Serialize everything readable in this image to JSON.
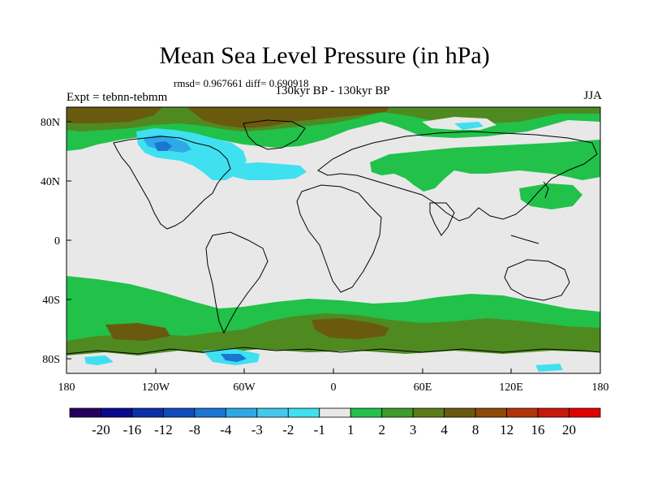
{
  "title": "Mean Sea Level Pressure (in hPa)",
  "stats": "rmsd= 0.967661 diff= 0.690918",
  "period": "130kyr BP - 130kyr BP",
  "experiment": "Expt = tebnn-tebmm",
  "season": "JJA",
  "lat_labels": [
    "80N",
    "40N",
    "0",
    "40S",
    "80S"
  ],
  "lon_labels": [
    "180",
    "120W",
    "60W",
    "0",
    "60E",
    "120E",
    "180"
  ],
  "colorbar": {
    "colors": [
      "#24005e",
      "#0a0a8c",
      "#0c2ea8",
      "#0e4cbe",
      "#1b76d2",
      "#2ea9e6",
      "#44c8ee",
      "#3fe0f0",
      "#e8e8e8",
      "#21c14a",
      "#3f9b2a",
      "#5c7c1a",
      "#6a5a10",
      "#8e4a08",
      "#b3330a",
      "#c8180a",
      "#e00000"
    ],
    "labels": [
      "-20",
      "-16",
      "-12",
      "-8",
      "-4",
      "-3",
      "-2",
      "-1",
      "1",
      "2",
      "3",
      "4",
      "8",
      "12",
      "16",
      "20"
    ]
  },
  "colors": {
    "background_field": "#e8e8e8",
    "pos_light": "#21c14a",
    "pos_mid": "#4f8a21",
    "pos_dark": "#6a5a10",
    "neg_light": "#3fe0f0",
    "neg_mid": "#2ea9e6",
    "neg_dark": "#1b76d2"
  }
}
